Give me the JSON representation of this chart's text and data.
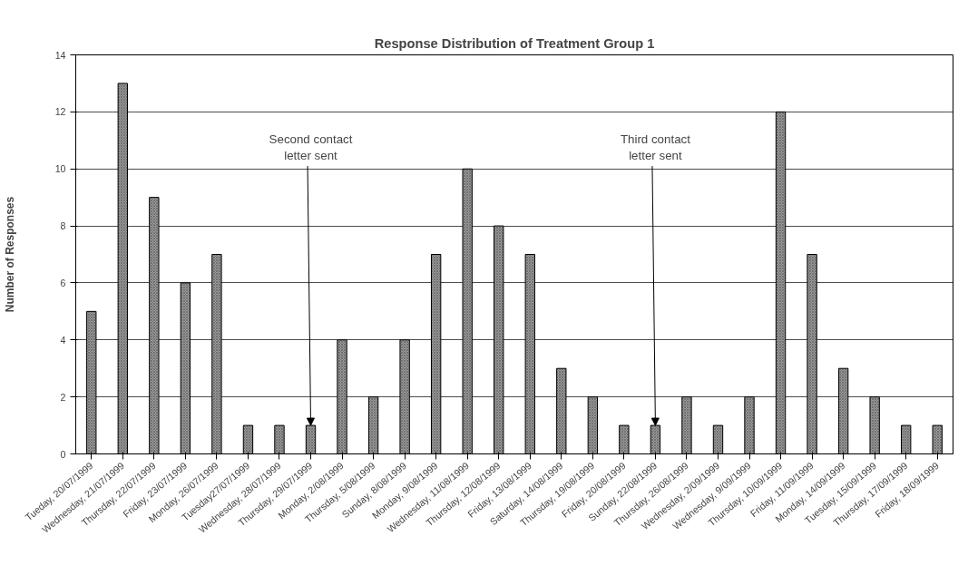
{
  "chart_data": {
    "type": "bar",
    "title": "Response Distribution of Treatment Group 1",
    "ylabel": "Number of Responses",
    "categories": [
      "Tueday, 20/07/1999",
      "Wednesday, 21/07/1999",
      "Thursday, 22/07/1999",
      "Friday, 23/07/1999",
      "Monday, 26/07/1999",
      "Tuesday27/07/1999",
      "Wednesday, 28/07/1999",
      "Thursday, 29/07/1999",
      "Monday, 2/08/1999",
      "Thursday, 5/08/1999",
      "Sunday, 8/08/1999",
      "Monday, 9/08/1999",
      "Wednesday, 11/08/1999",
      "Thursday, 12/08/1999",
      "Friday, 13/08/1999",
      "Saturday, 14/08/1999",
      "Thursday, 19/08/1999",
      "Friday, 20/08/1999",
      "Sunday, 22/08/1999",
      "Thursday, 26/08/1999",
      "Wednesday, 2/09/1999",
      "Wednesday, 9/09/1999",
      "Thursday, 10/09/1999",
      "Friday, 11/09/1999",
      "Monday, 14/09/1999",
      "Tuesday, 15/09/1999",
      "Thursday, 17/09/1999",
      "Friday, 18/09/1999"
    ],
    "values": [
      5,
      13,
      9,
      6,
      7,
      1,
      1,
      1,
      4,
      2,
      4,
      7,
      10,
      8,
      7,
      3,
      2,
      1,
      1,
      2,
      1,
      2,
      12,
      7,
      3,
      2,
      1,
      1
    ],
    "color": "#9a9a9a",
    "ylim": [
      0,
      14
    ],
    "yticks": [
      0,
      2,
      4,
      6,
      8,
      10,
      12,
      14
    ],
    "grid": "y",
    "annotations": [
      {
        "text": "Second contact\nletter sent",
        "x": "Thursday, 29/07/1999",
        "y": 1
      },
      {
        "text": "Third contact\nletter sent",
        "x": "Sunday, 22/08/1999",
        "y": 1
      }
    ]
  }
}
